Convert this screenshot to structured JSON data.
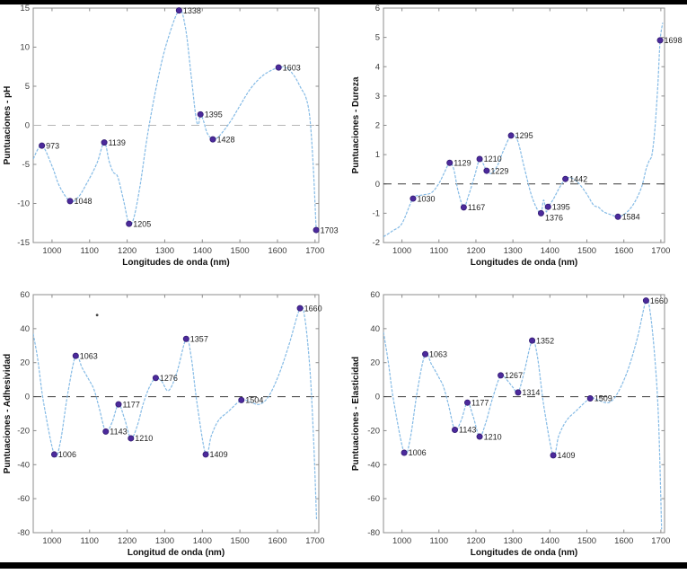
{
  "page": {
    "background": "#ffffff",
    "top_border_color": "#000000",
    "bottom_border_color": "#000000"
  },
  "colors": {
    "curve": "#85bbe6",
    "marker_fill": "#4c2a9c",
    "marker_edge": "#331c73",
    "axis_box": "#8c8c8c",
    "tick_text": "#3d3d3d",
    "axis_label_text": "#111111",
    "point_label_text": "#1f1f1f"
  },
  "chart_data": [
    {
      "type": "line",
      "ylabel": "Puntuaciones - pH",
      "xlabel": "Longitudes de onda (nm)",
      "xlim": [
        950,
        1710
      ],
      "ylim": [
        -15,
        15
      ],
      "xticks": [
        1000,
        1100,
        1200,
        1300,
        1400,
        1500,
        1600,
        1700
      ],
      "yticks": [
        -15,
        -10,
        -5,
        0,
        5,
        10,
        15
      ],
      "zero_line": true,
      "zero_line_color": "#b5b5b5",
      "grid": false,
      "legend": null,
      "curve": [
        [
          950,
          -4.3
        ],
        [
          973,
          -2.6
        ],
        [
          1000,
          -5.2
        ],
        [
          1020,
          -7.8
        ],
        [
          1048,
          -9.7
        ],
        [
          1070,
          -9.2
        ],
        [
          1095,
          -7.2
        ],
        [
          1120,
          -4.8
        ],
        [
          1139,
          -2.2
        ],
        [
          1152,
          -4.6
        ],
        [
          1163,
          -6.0
        ],
        [
          1175,
          -6.6
        ],
        [
          1190,
          -9.5
        ],
        [
          1205,
          -12.6
        ],
        [
          1218,
          -11.8
        ],
        [
          1235,
          -7.5
        ],
        [
          1255,
          -1.0
        ],
        [
          1280,
          5.5
        ],
        [
          1305,
          10.5
        ],
        [
          1338,
          14.7
        ],
        [
          1355,
          12.5
        ],
        [
          1370,
          6.5
        ],
        [
          1383,
          1.0
        ],
        [
          1390,
          0.2
        ],
        [
          1395,
          1.4
        ],
        [
          1403,
          0.6
        ],
        [
          1413,
          -1.0
        ],
        [
          1428,
          -1.8
        ],
        [
          1442,
          -1.5
        ],
        [
          1455,
          -0.8
        ],
        [
          1475,
          0.5
        ],
        [
          1500,
          2.5
        ],
        [
          1530,
          4.8
        ],
        [
          1565,
          6.5
        ],
        [
          1603,
          7.4
        ],
        [
          1625,
          7.3
        ],
        [
          1645,
          6.3
        ],
        [
          1662,
          4.8
        ],
        [
          1676,
          3.5
        ],
        [
          1686,
          1.0
        ],
        [
          1695,
          -5.0
        ],
        [
          1703,
          -13.4
        ]
      ],
      "points": [
        {
          "x": 973,
          "y": -2.6,
          "label": "973"
        },
        {
          "x": 1048,
          "y": -9.7,
          "label": "1048"
        },
        {
          "x": 1139,
          "y": -2.2,
          "label": "1139"
        },
        {
          "x": 1205,
          "y": -12.6,
          "label": "1205"
        },
        {
          "x": 1338,
          "y": 14.7,
          "label": "1338"
        },
        {
          "x": 1395,
          "y": 1.4,
          "label": "1395"
        },
        {
          "x": 1428,
          "y": -1.8,
          "label": "1428"
        },
        {
          "x": 1603,
          "y": 7.4,
          "label": "1603"
        },
        {
          "x": 1703,
          "y": -13.4,
          "label": "1703"
        }
      ]
    },
    {
      "type": "line",
      "ylabel": "Puntuaciones - Dureza",
      "xlabel": "Longitudes de onda (nm)",
      "xlim": [
        950,
        1710
      ],
      "ylim": [
        -2,
        6
      ],
      "xticks": [
        1000,
        1100,
        1200,
        1300,
        1400,
        1500,
        1600,
        1700
      ],
      "yticks": [
        -2,
        -1,
        0,
        1,
        2,
        3,
        4,
        5,
        6
      ],
      "zero_line": true,
      "zero_line_color": "#3c3c3c",
      "grid": false,
      "legend": null,
      "curve": [
        [
          950,
          -1.8
        ],
        [
          975,
          -1.6
        ],
        [
          1000,
          -1.35
        ],
        [
          1030,
          -0.5
        ],
        [
          1055,
          -0.38
        ],
        [
          1080,
          -0.3
        ],
        [
          1100,
          0.02
        ],
        [
          1115,
          0.4
        ],
        [
          1129,
          0.72
        ],
        [
          1140,
          0.5
        ],
        [
          1152,
          -0.25
        ],
        [
          1167,
          -0.8
        ],
        [
          1180,
          -0.4
        ],
        [
          1196,
          0.25
        ],
        [
          1210,
          0.85
        ],
        [
          1220,
          0.68
        ],
        [
          1229,
          0.45
        ],
        [
          1242,
          0.36
        ],
        [
          1258,
          0.62
        ],
        [
          1275,
          1.15
        ],
        [
          1295,
          1.65
        ],
        [
          1312,
          1.5
        ],
        [
          1330,
          0.6
        ],
        [
          1348,
          -0.3
        ],
        [
          1363,
          -0.8
        ],
        [
          1376,
          -1.0
        ],
        [
          1383,
          -0.55
        ],
        [
          1390,
          -0.95
        ],
        [
          1395,
          -0.78
        ],
        [
          1408,
          -0.55
        ],
        [
          1425,
          -0.15
        ],
        [
          1442,
          0.17
        ],
        [
          1458,
          0.2
        ],
        [
          1478,
          0.02
        ],
        [
          1500,
          -0.35
        ],
        [
          1518,
          -0.72
        ],
        [
          1532,
          -0.8
        ],
        [
          1545,
          -0.95
        ],
        [
          1565,
          -1.05
        ],
        [
          1584,
          -1.12
        ],
        [
          1605,
          -1.0
        ],
        [
          1628,
          -0.65
        ],
        [
          1648,
          -0.1
        ],
        [
          1660,
          0.5
        ],
        [
          1668,
          0.78
        ],
        [
          1676,
          1.0
        ],
        [
          1684,
          1.9
        ],
        [
          1692,
          3.4
        ],
        [
          1698,
          4.9
        ],
        [
          1705,
          5.5
        ]
      ],
      "points": [
        {
          "x": 1030,
          "y": -0.5,
          "label": "1030"
        },
        {
          "x": 1129,
          "y": 0.72,
          "label": "1129"
        },
        {
          "x": 1167,
          "y": -0.8,
          "label": "1167"
        },
        {
          "x": 1210,
          "y": 0.85,
          "label": "1210"
        },
        {
          "x": 1229,
          "y": 0.45,
          "label": "1229"
        },
        {
          "x": 1295,
          "y": 1.65,
          "label": "1295"
        },
        {
          "x": 1376,
          "y": -1.0,
          "label": "1376",
          "dy": 8
        },
        {
          "x": 1395,
          "y": -0.78,
          "label": "1395"
        },
        {
          "x": 1442,
          "y": 0.17,
          "label": "1442"
        },
        {
          "x": 1584,
          "y": -1.12,
          "label": "1584"
        },
        {
          "x": 1698,
          "y": 4.9,
          "label": "1698"
        }
      ]
    },
    {
      "type": "line",
      "ylabel": "Puntuaciones - Adhesividad",
      "xlabel": "Longitud de onda (nm)",
      "xlim": [
        950,
        1710
      ],
      "ylim": [
        -80,
        60
      ],
      "xticks": [
        1000,
        1100,
        1200,
        1300,
        1400,
        1500,
        1600,
        1700
      ],
      "yticks": [
        -80,
        -60,
        -40,
        -20,
        0,
        20,
        40,
        60
      ],
      "zero_line": true,
      "zero_line_color": "#3c3c3c",
      "grid": false,
      "legend": null,
      "stray_dot": {
        "x": 1120,
        "y": 48
      },
      "curve": [
        [
          950,
          37
        ],
        [
          962,
          22
        ],
        [
          978,
          -4
        ],
        [
          1006,
          -34
        ],
        [
          1022,
          -27
        ],
        [
          1042,
          2
        ],
        [
          1063,
          24
        ],
        [
          1080,
          17
        ],
        [
          1098,
          10
        ],
        [
          1112,
          4
        ],
        [
          1126,
          -7
        ],
        [
          1143,
          -20.5
        ],
        [
          1160,
          -15
        ],
        [
          1177,
          -4.5
        ],
        [
          1193,
          -13
        ],
        [
          1210,
          -24.5
        ],
        [
          1227,
          -17
        ],
        [
          1243,
          -4
        ],
        [
          1260,
          6
        ],
        [
          1276,
          11
        ],
        [
          1292,
          9
        ],
        [
          1310,
          3.5
        ],
        [
          1332,
          14
        ],
        [
          1357,
          34
        ],
        [
          1370,
          24
        ],
        [
          1386,
          -4
        ],
        [
          1409,
          -34
        ],
        [
          1424,
          -23
        ],
        [
          1443,
          -14
        ],
        [
          1468,
          -9
        ],
        [
          1504,
          -2
        ],
        [
          1528,
          -3.2
        ],
        [
          1552,
          -4.5
        ],
        [
          1576,
          0
        ],
        [
          1602,
          12
        ],
        [
          1630,
          30
        ],
        [
          1660,
          52
        ],
        [
          1673,
          46
        ],
        [
          1687,
          14
        ],
        [
          1697,
          -30
        ],
        [
          1704,
          -72
        ]
      ],
      "points": [
        {
          "x": 1006,
          "y": -34,
          "label": "1006"
        },
        {
          "x": 1063,
          "y": 24,
          "label": "1063"
        },
        {
          "x": 1143,
          "y": -20.5,
          "label": "1143"
        },
        {
          "x": 1177,
          "y": -4.5,
          "label": "1177"
        },
        {
          "x": 1210,
          "y": -24.5,
          "label": "1210"
        },
        {
          "x": 1276,
          "y": 11,
          "label": "1276"
        },
        {
          "x": 1357,
          "y": 34,
          "label": "1357"
        },
        {
          "x": 1409,
          "y": -34,
          "label": "1409"
        },
        {
          "x": 1504,
          "y": -2,
          "label": "1504"
        },
        {
          "x": 1660,
          "y": 52,
          "label": "1660"
        }
      ]
    },
    {
      "type": "line",
      "ylabel": "Puntuaciones - Elasticidad",
      "xlabel": "Longitudes de onda (nm)",
      "xlim": [
        950,
        1710
      ],
      "ylim": [
        -80,
        60
      ],
      "xticks": [
        1000,
        1100,
        1200,
        1300,
        1400,
        1500,
        1600,
        1700
      ],
      "yticks": [
        -80,
        -60,
        -40,
        -20,
        0,
        20,
        40,
        60
      ],
      "zero_line": true,
      "zero_line_color": "#3c3c3c",
      "grid": false,
      "legend": null,
      "curve": [
        [
          950,
          38
        ],
        [
          962,
          22
        ],
        [
          978,
          -3
        ],
        [
          1006,
          -33
        ],
        [
          1022,
          -25
        ],
        [
          1042,
          4
        ],
        [
          1063,
          25
        ],
        [
          1080,
          19
        ],
        [
          1098,
          12
        ],
        [
          1112,
          6
        ],
        [
          1126,
          -5
        ],
        [
          1143,
          -19.5
        ],
        [
          1160,
          -14
        ],
        [
          1177,
          -3.5
        ],
        [
          1193,
          -12
        ],
        [
          1210,
          -23.5
        ],
        [
          1227,
          -15
        ],
        [
          1245,
          -1
        ],
        [
          1267,
          12.5
        ],
        [
          1283,
          10
        ],
        [
          1300,
          5.5
        ],
        [
          1314,
          2.5
        ],
        [
          1330,
          14
        ],
        [
          1352,
          33
        ],
        [
          1366,
          24
        ],
        [
          1384,
          -6
        ],
        [
          1409,
          -34.5
        ],
        [
          1424,
          -23
        ],
        [
          1445,
          -14
        ],
        [
          1470,
          -8.5
        ],
        [
          1509,
          -1
        ],
        [
          1532,
          -2.2
        ],
        [
          1558,
          -3.5
        ],
        [
          1580,
          1
        ],
        [
          1608,
          14
        ],
        [
          1636,
          34
        ],
        [
          1660,
          56.5
        ],
        [
          1671,
          50
        ],
        [
          1684,
          22
        ],
        [
          1694,
          -15
        ],
        [
          1702,
          -78
        ]
      ],
      "points": [
        {
          "x": 1006,
          "y": -33,
          "label": "1006"
        },
        {
          "x": 1063,
          "y": 25,
          "label": "1063"
        },
        {
          "x": 1143,
          "y": -19.5,
          "label": "1143"
        },
        {
          "x": 1177,
          "y": -3.5,
          "label": "1177"
        },
        {
          "x": 1210,
          "y": -23.5,
          "label": "1210"
        },
        {
          "x": 1267,
          "y": 12.5,
          "label": "1267"
        },
        {
          "x": 1314,
          "y": 2.5,
          "label": "1314"
        },
        {
          "x": 1352,
          "y": 33,
          "label": "1352"
        },
        {
          "x": 1409,
          "y": -34.5,
          "label": "1409"
        },
        {
          "x": 1509,
          "y": -1,
          "label": "1509"
        },
        {
          "x": 1660,
          "y": 56.5,
          "label": "1660"
        }
      ]
    }
  ]
}
